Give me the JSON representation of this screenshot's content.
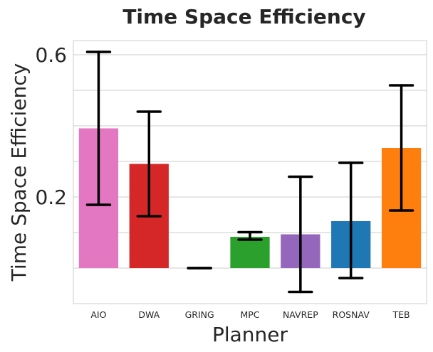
{
  "chart_data": {
    "type": "bar",
    "title": "Time Space Efficiency",
    "xlabel": "Planner",
    "ylabel": "Time Space Efficiency",
    "categories": [
      "AIO",
      "DWA",
      "GRING",
      "MPC",
      "NAVREP",
      "ROSNAV",
      "TEB"
    ],
    "values": [
      0.393,
      0.293,
      0.0,
      0.088,
      0.095,
      0.132,
      0.338
    ],
    "error_low": [
      0.178,
      0.146,
      0.0,
      0.08,
      -0.067,
      -0.028,
      0.162
    ],
    "error_high": [
      0.608,
      0.44,
      0.0,
      0.101,
      0.257,
      0.296,
      0.514
    ],
    "colors": [
      "#e377c2",
      "#d62728",
      "#7f7f7f",
      "#2ca02c",
      "#9467bd",
      "#1f77b4",
      "#ff7f0e"
    ],
    "yticks": [
      0.2,
      0.6
    ],
    "ytick_labels": [
      "0.2",
      "0.6"
    ],
    "ylim": [
      -0.1,
      0.64
    ],
    "grid": true
  }
}
